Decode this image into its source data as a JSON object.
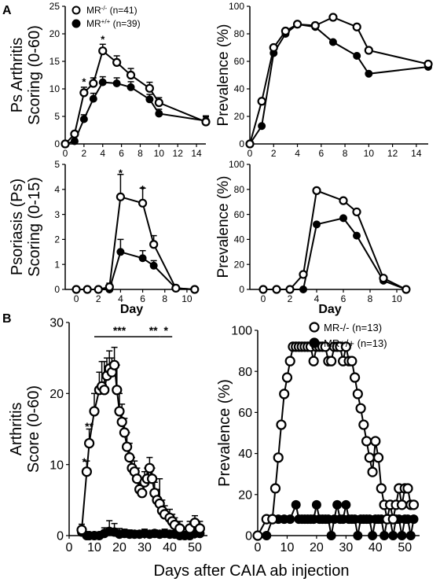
{
  "figure": {
    "panel_a": "A",
    "panel_b": "B",
    "xlabel_bottom": "Days after CAIA ab injection"
  },
  "chart_data": [
    {
      "id": "a1",
      "type": "line",
      "panel": "A",
      "ylabel": [
        "Ps Arthritis",
        "Scoring (0-60)"
      ],
      "xlabel": "",
      "xlim": [
        0,
        15
      ],
      "ylim": [
        0,
        25
      ],
      "xticks": [
        0,
        2,
        4,
        6,
        8,
        10,
        12,
        14
      ],
      "yticks": [
        0,
        5,
        10,
        15,
        20,
        25
      ],
      "legend": {
        "position": "top-left"
      },
      "series": [
        {
          "name": "MR⁻/⁻ (n=41)",
          "legend_label": "MR",
          "legend_sup": "-/-",
          "legend_rest": " (n=41)",
          "marker": "open",
          "x": [
            0,
            1,
            2,
            3,
            4,
            5.5,
            7,
            9,
            10,
            15
          ],
          "y": [
            0,
            1.8,
            9.3,
            11,
            16.9,
            14.8,
            12.5,
            10.1,
            7.5,
            4.0
          ],
          "err": [
            0.3,
            0.5,
            1.0,
            1.0,
            1.2,
            1.2,
            1.2,
            1.1,
            0.9,
            0.9
          ]
        },
        {
          "name": "MR⁺/⁺ (n=39)",
          "legend_label": "MR",
          "legend_sup": "+/+",
          "legend_rest": " (n=39)",
          "marker": "filled",
          "x": [
            0,
            1,
            2,
            3,
            4,
            5.5,
            7,
            9,
            10,
            15
          ],
          "y": [
            0,
            0.5,
            4.5,
            8.2,
            11.2,
            11.0,
            10.3,
            8.1,
            5.5,
            4.2
          ],
          "err": [
            0.2,
            0.4,
            0.8,
            1.0,
            1.0,
            1.0,
            1.0,
            0.9,
            0.8,
            0.9
          ]
        }
      ],
      "annotations": [
        {
          "text": "*",
          "x": 2,
          "y": 11.5
        },
        {
          "text": "*",
          "x": 4,
          "y": 19.2
        }
      ]
    },
    {
      "id": "a2",
      "type": "line",
      "panel": "A",
      "ylabel": [
        "Prevalence (%)"
      ],
      "xlabel": "",
      "xlim": [
        0,
        15
      ],
      "ylim": [
        0,
        100
      ],
      "xticks": [
        0,
        2,
        4,
        6,
        8,
        10,
        12,
        14
      ],
      "yticks": [
        0,
        20,
        40,
        60,
        80,
        100
      ],
      "series": [
        {
          "name": "MR⁻/⁻",
          "marker": "open",
          "x": [
            0,
            1,
            2,
            3,
            4,
            5.5,
            7,
            9,
            10,
            15
          ],
          "y": [
            0,
            31,
            70,
            82,
            87,
            86,
            92,
            85,
            68,
            58
          ]
        },
        {
          "name": "MR⁺/⁺",
          "marker": "filled",
          "x": [
            0,
            1,
            2,
            3,
            4,
            5.5,
            7,
            9,
            10,
            15
          ],
          "y": [
            0,
            13,
            66,
            80,
            87,
            85,
            74,
            64,
            51,
            56
          ]
        }
      ]
    },
    {
      "id": "a3",
      "type": "line",
      "panel": "A",
      "ylabel": [
        "Psoriasis (Ps)",
        "Scoring (0-15)"
      ],
      "xlabel": "Day",
      "xlim": [
        -1,
        11
      ],
      "ylim": [
        0,
        5
      ],
      "xticks": [
        0,
        2,
        4,
        6,
        8,
        10
      ],
      "yticks": [
        0,
        1,
        2,
        3,
        4,
        5
      ],
      "series": [
        {
          "name": "MR⁻/⁻",
          "marker": "open",
          "x": [
            0,
            1,
            2,
            3,
            4,
            6,
            7,
            9,
            10.7
          ],
          "y": [
            0,
            0,
            0,
            0.1,
            3.7,
            3.45,
            1.8,
            0.05,
            0
          ],
          "err": [
            0,
            0,
            0,
            0.15,
            0.9,
            0.6,
            0.35,
            0.1,
            0
          ]
        },
        {
          "name": "MR⁺/⁺",
          "marker": "filled",
          "x": [
            0,
            1,
            2,
            3,
            4,
            6,
            7,
            9,
            10.7
          ],
          "y": [
            0,
            0,
            0,
            0,
            1.5,
            1.25,
            0.95,
            0.05,
            0
          ],
          "err": [
            0,
            0,
            0,
            0,
            0.5,
            0.3,
            0.2,
            0.1,
            0
          ]
        }
      ],
      "annotations": [
        {
          "text": "*",
          "x": 4,
          "y": 4.7
        },
        {
          "text": "*",
          "x": 6,
          "y": 4.05
        }
      ]
    },
    {
      "id": "a4",
      "type": "line",
      "panel": "A",
      "ylabel": [
        "Prevalence (%)"
      ],
      "xlabel": "Day",
      "xlim": [
        -1,
        11
      ],
      "ylim": [
        0,
        100
      ],
      "xticks": [
        0,
        2,
        4,
        6,
        8,
        10
      ],
      "yticks": [
        0,
        20,
        40,
        60,
        80,
        100
      ],
      "series": [
        {
          "name": "MR⁻/⁻",
          "marker": "open",
          "x": [
            0,
            1,
            2,
            3,
            4,
            6,
            7,
            9,
            10.7
          ],
          "y": [
            0,
            0,
            0,
            12,
            79,
            71,
            62,
            9,
            0
          ]
        },
        {
          "name": "MR⁺/⁺",
          "marker": "filled",
          "x": [
            0,
            1,
            2,
            3,
            4,
            6,
            7,
            9,
            10.7
          ],
          "y": [
            0,
            0,
            0,
            0,
            52,
            57,
            43,
            7,
            0
          ]
        }
      ]
    },
    {
      "id": "b1",
      "type": "line",
      "panel": "B",
      "ylabel": [
        "Arthritis",
        "Score (0-60)"
      ],
      "xlabel": "",
      "xlim": [
        0,
        55
      ],
      "ylim": [
        0,
        30
      ],
      "xticks": [
        0,
        10,
        20,
        30,
        40,
        50
      ],
      "yticks": [
        0,
        10,
        20,
        30
      ],
      "series": [
        {
          "name": "MR-/-",
          "marker": "open",
          "x": [
            5,
            7,
            8,
            10,
            12,
            13,
            14,
            15,
            16,
            17,
            18,
            19,
            20,
            21,
            22,
            23,
            24,
            25,
            26,
            27,
            28,
            29,
            30,
            31,
            32,
            33,
            34,
            35,
            36,
            37,
            38,
            40,
            41,
            42,
            44,
            48,
            50,
            52
          ],
          "y": [
            0.8,
            9,
            13,
            17.5,
            20.5,
            21,
            20.5,
            22.5,
            23.5,
            23,
            24,
            20.5,
            17.5,
            16,
            14.5,
            12.5,
            11,
            9.5,
            9,
            8,
            6.5,
            6,
            7.5,
            8,
            9.5,
            8,
            6,
            5,
            4.5,
            3.5,
            3,
            2.5,
            2,
            1.5,
            1,
            1,
            1.8,
            1
          ],
          "err": [
            0.8,
            1.5,
            2,
            2.5,
            2.5,
            3.5,
            4,
            2.5,
            2.5,
            2,
            2.5,
            3.5,
            2.5,
            2.5,
            2,
            2,
            2,
            1.5,
            1.5,
            1.5,
            1.2,
            1.2,
            1.5,
            1.5,
            1.5,
            1.5,
            1.5,
            1.5,
            3.5,
            1.5,
            1.2,
            1.2,
            1,
            1,
            1,
            1,
            1,
            1
          ]
        },
        {
          "name": "MR+/+",
          "marker": "filled",
          "x": [
            5,
            7,
            8,
            10,
            12,
            14,
            16,
            18,
            20,
            22,
            24,
            26,
            28,
            30,
            32,
            34,
            36,
            38,
            40,
            42,
            44,
            46,
            48,
            50,
            52
          ],
          "y": [
            0.5,
            0,
            0,
            0,
            0,
            0.3,
            0.6,
            0.5,
            0.2,
            0.3,
            0.2,
            0.2,
            0.2,
            0.3,
            0.2,
            0.3,
            0.2,
            0.3,
            0.2,
            0.2,
            0,
            0,
            0,
            0.3,
            0.3
          ],
          "err": [
            0.5,
            0,
            0,
            0.3,
            0.5,
            0.8,
            1.5,
            1.2,
            0.8,
            0.6,
            0.6,
            0.5,
            0.5,
            0.6,
            0.5,
            0.5,
            0.5,
            0.6,
            0.5,
            0.5,
            0.3,
            0.3,
            0.3,
            0.6,
            0.5
          ]
        }
      ],
      "annotations": [
        {
          "text": "*",
          "x": 6,
          "y": 10.5
        },
        {
          "text": "**",
          "x": 8,
          "y": 15.5
        },
        {
          "text": "***",
          "x": 20,
          "y": 29
        },
        {
          "text": "**",
          "x": 33.5,
          "y": 29
        },
        {
          "text": "*",
          "x": 38.5,
          "y": 29
        }
      ],
      "sig_bars": [
        [
          10,
          30
        ],
        [
          30,
          36
        ],
        [
          36,
          41
        ]
      ]
    },
    {
      "id": "b2",
      "type": "line",
      "panel": "B",
      "ylabel": [
        "Prevalence (%)"
      ],
      "xlabel": "",
      "xlim": [
        0,
        55
      ],
      "ylim": [
        0,
        100
      ],
      "xticks": [
        0,
        10,
        20,
        30,
        40,
        50
      ],
      "yticks": [
        0,
        20,
        40,
        60,
        80,
        100
      ],
      "legend": {
        "position": "top-right"
      },
      "series": [
        {
          "name": "MR-/- (n=13)",
          "marker": "open",
          "x": [
            0,
            3,
            5,
            6,
            7,
            8,
            9,
            10,
            11,
            12,
            13,
            14,
            15,
            16,
            17,
            18,
            19,
            20,
            21,
            22,
            23,
            24,
            25,
            26,
            27,
            28,
            29,
            30,
            31,
            32,
            33,
            34,
            35,
            36,
            37,
            38,
            39,
            40,
            41,
            42,
            43,
            44,
            45,
            46,
            47,
            48,
            49,
            50,
            51,
            52,
            53
          ],
          "y": [
            0,
            8,
            8,
            23,
            38,
            54,
            69,
            77,
            85,
            92,
            92,
            92,
            92,
            92,
            92,
            92,
            85,
            92,
            92,
            92,
            92,
            85,
            85,
            92,
            92,
            92,
            85,
            92,
            85,
            85,
            77,
            69,
            62,
            54,
            46,
            38,
            31,
            46,
            38,
            23,
            15,
            8,
            15,
            8,
            15,
            23,
            15,
            23,
            23,
            15,
            15
          ]
        },
        {
          "name": "MR+/+ (n=13)",
          "marker": "filled",
          "x": [
            0,
            3,
            5,
            7,
            9,
            11,
            13,
            14,
            15,
            16,
            17,
            18,
            19,
            20,
            21,
            22,
            23,
            24,
            25,
            26,
            27,
            28,
            29,
            30,
            31,
            32,
            33,
            34,
            35,
            36,
            37,
            38,
            39,
            40,
            41,
            42,
            43,
            44,
            45,
            46,
            47,
            48,
            49,
            50,
            51,
            52,
            53
          ],
          "y": [
            0,
            0,
            8,
            8,
            8,
            8,
            15,
            8,
            8,
            8,
            8,
            8,
            8,
            15,
            8,
            8,
            8,
            8,
            0,
            8,
            15,
            8,
            8,
            15,
            8,
            8,
            8,
            0,
            8,
            8,
            8,
            8,
            0,
            8,
            8,
            8,
            0,
            8,
            8,
            0,
            8,
            8,
            0,
            8,
            8,
            0,
            8
          ]
        }
      ]
    }
  ]
}
